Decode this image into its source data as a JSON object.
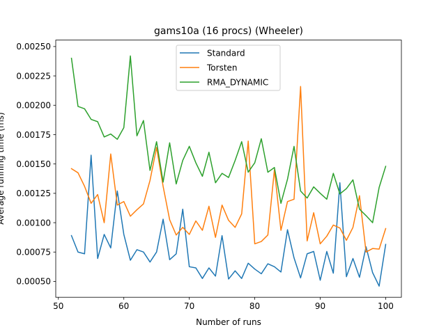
{
  "chart_data": {
    "type": "line",
    "title": "gams10a (16 procs) (Wheeler)",
    "xlabel": "Number of runs",
    "ylabel": "Average running time (ms)",
    "xlim": [
      49.6,
      102.4
    ],
    "ylim": [
      0.000365,
      0.002555
    ],
    "xticks": [
      50,
      60,
      70,
      80,
      90,
      100
    ],
    "yticks": [
      0.0005,
      0.00075,
      0.001,
      0.00125,
      0.0015,
      0.00175,
      0.002,
      0.00225,
      0.0025
    ],
    "ytick_labels": [
      "0.00050",
      "0.00075",
      "0.00100",
      "0.00125",
      "0.00150",
      "0.00175",
      "0.00200",
      "0.00225",
      "0.00250"
    ],
    "grid": false,
    "legend_position": "upper-center",
    "x": [
      52,
      53,
      54,
      55,
      56,
      57,
      58,
      59,
      60,
      61,
      62,
      63,
      64,
      65,
      66,
      67,
      68,
      69,
      70,
      71,
      72,
      73,
      74,
      75,
      76,
      77,
      78,
      79,
      80,
      81,
      82,
      83,
      84,
      85,
      86,
      87,
      88,
      89,
      90,
      91,
      92,
      93,
      94,
      95,
      96,
      97,
      98,
      99,
      100
    ],
    "series": [
      {
        "name": "Standard",
        "color": "#1f77b4",
        "values": [
          0.00089,
          0.00075,
          0.000735,
          0.001575,
          0.000695,
          0.0009,
          0.000785,
          0.00127,
          0.0009,
          0.00068,
          0.00077,
          0.00075,
          0.000665,
          0.00075,
          0.00103,
          0.000685,
          0.000735,
          0.001115,
          0.000625,
          0.000615,
          0.000525,
          0.000615,
          0.000545,
          0.00089,
          0.00052,
          0.00059,
          0.000525,
          0.000655,
          0.000605,
          0.000565,
          0.00065,
          0.000625,
          0.00058,
          0.00094,
          0.0007,
          0.00053,
          0.000735,
          0.000755,
          0.00051,
          0.000755,
          0.00057,
          0.00134,
          0.00054,
          0.000695,
          0.000535,
          0.000795,
          0.000575,
          0.00046,
          0.000815
        ]
      },
      {
        "name": "Torsten",
        "color": "#ff7f0e",
        "values": [
          0.00146,
          0.001425,
          0.00131,
          0.001165,
          0.00124,
          0.001,
          0.001585,
          0.00115,
          0.00118,
          0.001055,
          0.00111,
          0.00116,
          0.00136,
          0.00164,
          0.00131,
          0.001025,
          0.000895,
          0.00096,
          0.0009,
          0.001015,
          0.000935,
          0.00114,
          0.000875,
          0.00115,
          0.00102,
          0.00096,
          0.001075,
          0.001695,
          0.00082,
          0.00084,
          0.000895,
          0.00145,
          0.000935,
          0.00118,
          0.0012,
          0.00216,
          0.000845,
          0.001085,
          0.00082,
          0.000885,
          0.00098,
          0.000955,
          0.00085,
          0.00096,
          0.00123,
          0.00075,
          0.00078,
          0.000775,
          0.00095
        ]
      },
      {
        "name": "RMA_DYNAMIC",
        "color": "#2ca02c",
        "values": [
          0.0024,
          0.00199,
          0.00197,
          0.00188,
          0.00186,
          0.00173,
          0.001755,
          0.00171,
          0.00181,
          0.00242,
          0.00174,
          0.00187,
          0.001445,
          0.00169,
          0.001345,
          0.00168,
          0.00133,
          0.00153,
          0.00165,
          0.00151,
          0.001395,
          0.0016,
          0.00134,
          0.00142,
          0.001385,
          0.00153,
          0.00169,
          0.00143,
          0.00151,
          0.001715,
          0.00143,
          0.00147,
          0.001165,
          0.00137,
          0.00165,
          0.00127,
          0.00121,
          0.001305,
          0.00125,
          0.0012,
          0.00142,
          0.001245,
          0.00129,
          0.001365,
          0.001115,
          0.00106,
          0.001,
          0.0013,
          0.00148
        ]
      }
    ]
  }
}
